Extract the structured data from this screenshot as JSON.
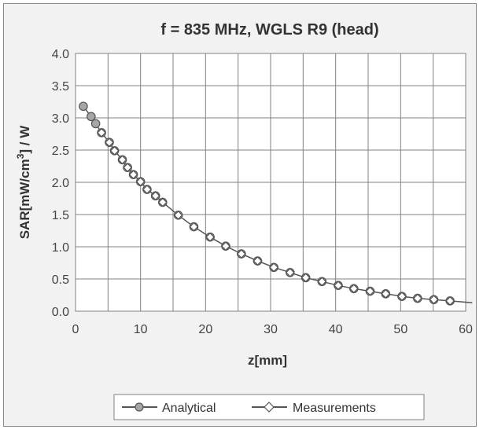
{
  "chart_data": {
    "type": "line",
    "title": "f = 835 MHz, WGLS R9 (head)",
    "xlabel": "z[mm]",
    "ylabel_parts": [
      "SAR[mW/cm",
      "3",
      "] / W"
    ],
    "xlim": [
      0,
      60
    ],
    "ylim": [
      0,
      4.0
    ],
    "x_ticks": [
      "0",
      "10",
      "20",
      "30",
      "40",
      "50",
      "60"
    ],
    "y_ticks": [
      "0.0",
      "0.5",
      "1.0",
      "1.5",
      "2.0",
      "2.5",
      "3.0",
      "3.5",
      "4.0"
    ],
    "grid": {
      "horizontal": true,
      "vertical": true
    },
    "legend_position": "bottom",
    "colors": {
      "analytical_fill": "#a6a6a6",
      "line": "#555555",
      "measurement_fill": "#ffffff",
      "grid": "#808080",
      "plot_bg": "#ffffff"
    },
    "series": [
      {
        "name": "Analytical",
        "marker": "circle",
        "x": [
          1.2,
          2.4,
          3.1,
          4.0,
          5.2,
          6.0,
          7.2,
          8.0,
          8.9,
          10.0,
          11.0,
          12.3,
          13.4,
          15.8,
          18.2,
          20.7,
          23.1,
          25.5,
          28.0,
          30.5,
          33.0,
          35.4,
          37.9,
          40.4,
          42.8,
          45.3,
          47.7,
          50.2,
          52.6,
          55.1,
          57.6,
          61.0
        ],
        "values": [
          3.18,
          3.02,
          2.91,
          2.77,
          2.62,
          2.49,
          2.35,
          2.23,
          2.12,
          2.01,
          1.89,
          1.79,
          1.69,
          1.49,
          1.31,
          1.15,
          1.01,
          0.89,
          0.78,
          0.68,
          0.6,
          0.52,
          0.46,
          0.4,
          0.35,
          0.31,
          0.27,
          0.23,
          0.2,
          0.18,
          0.16,
          0.13
        ]
      },
      {
        "name": "Measurements",
        "marker": "diamond",
        "x": [
          4.0,
          5.2,
          6.0,
          7.2,
          8.0,
          8.9,
          10.0,
          11.0,
          12.3,
          13.4,
          15.8,
          18.2,
          20.7,
          23.1,
          25.5,
          28.0,
          30.5,
          33.0,
          35.4,
          37.9,
          40.4,
          42.8,
          45.3,
          47.7,
          50.2,
          52.6,
          55.1,
          57.6
        ],
        "values": [
          2.77,
          2.62,
          2.49,
          2.35,
          2.23,
          2.12,
          2.01,
          1.89,
          1.79,
          1.69,
          1.49,
          1.31,
          1.15,
          1.01,
          0.89,
          0.78,
          0.68,
          0.6,
          0.52,
          0.46,
          0.4,
          0.35,
          0.31,
          0.27,
          0.23,
          0.2,
          0.18,
          0.16
        ]
      }
    ]
  }
}
